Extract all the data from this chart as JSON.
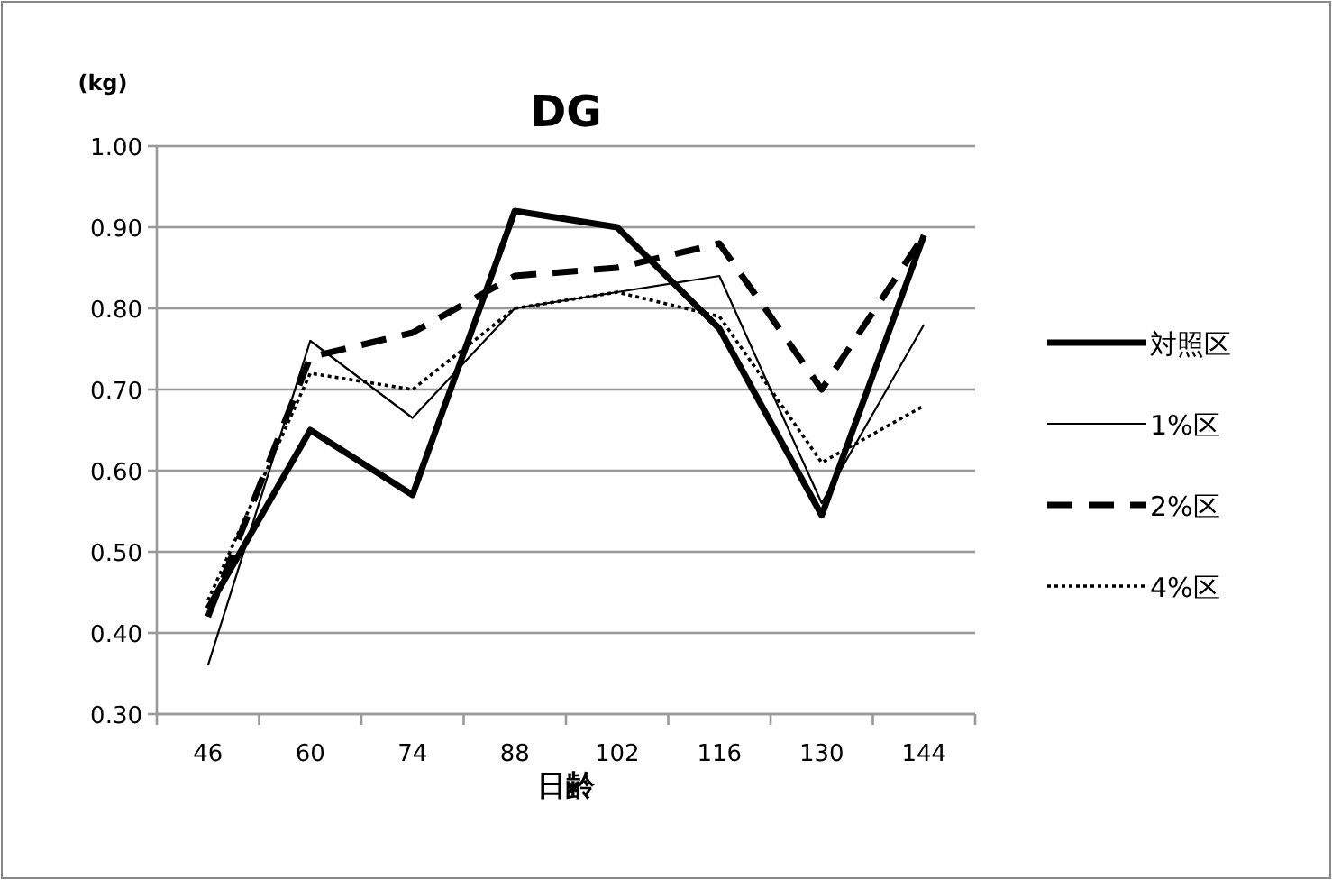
{
  "chart_data": {
    "type": "line",
    "title": "DG",
    "xlabel": "日齢",
    "ylabel": "(kg)",
    "categories": [
      "46",
      "60",
      "74",
      "88",
      "102",
      "116",
      "130",
      "144"
    ],
    "series": [
      {
        "name": "対照区",
        "color": "#000000",
        "line_style": "solid",
        "values": [
          0.43,
          0.65,
          0.57,
          0.92,
          0.9,
          0.775,
          0.545,
          0.89
        ]
      },
      {
        "name": "1%区",
        "color": "#000000",
        "line_style": "solid",
        "values": [
          0.36,
          0.76,
          0.665,
          0.8,
          0.82,
          0.84,
          0.56,
          0.78
        ]
      },
      {
        "name": "2%区",
        "color": "#000000",
        "line_style": "dashed",
        "values": [
          0.42,
          0.74,
          0.77,
          0.84,
          0.85,
          0.88,
          0.7,
          0.89
        ]
      },
      {
        "name": "4%区",
        "color": "#000000",
        "line_style": "dotted",
        "values": [
          0.44,
          0.72,
          0.7,
          0.8,
          0.82,
          0.79,
          0.61,
          0.68
        ]
      }
    ],
    "ylim": [
      0.3,
      1.0
    ],
    "yticks": [
      {
        "value": 0.3,
        "label": "0.30"
      },
      {
        "value": 0.4,
        "label": "0.40"
      },
      {
        "value": 0.5,
        "label": "0.50"
      },
      {
        "value": 0.6,
        "label": "0.60"
      },
      {
        "value": 0.7,
        "label": "0.70"
      },
      {
        "value": 0.8,
        "label": "0.80"
      },
      {
        "value": 0.9,
        "label": "0.90"
      },
      {
        "value": 1.0,
        "label": "1.00"
      }
    ],
    "grid": "y",
    "legend": "right"
  }
}
